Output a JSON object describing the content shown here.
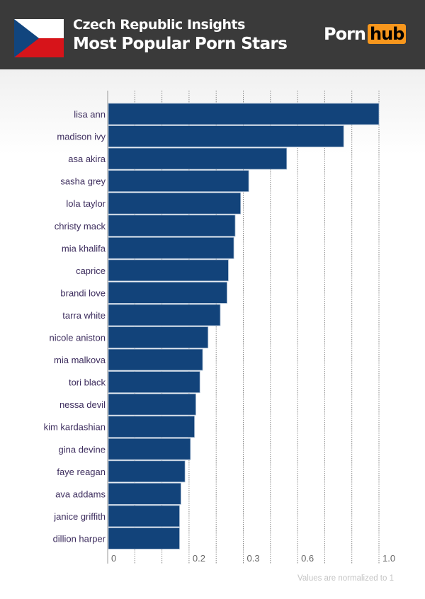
{
  "header": {
    "subtitle": "Czech Republic Insights",
    "title": "Most Popular Porn Stars",
    "logo_left": "Porn",
    "logo_right": "hub",
    "flag": "czech-flag",
    "colors": {
      "background": "#3a3a3a",
      "logo_accent": "#f7971d"
    }
  },
  "chart_data": {
    "type": "bar",
    "orientation": "horizontal",
    "categories": [
      "lisa ann",
      "madison ivy",
      "asa akira",
      "sasha grey",
      "lola taylor",
      "christy mack",
      "mia khalifa",
      "caprice",
      "brandi love",
      "tarra white",
      "nicole aniston",
      "mia malkova",
      "tori black",
      "nessa devil",
      "kim kardashian",
      "gina devine",
      "faye reagan",
      "ava addams",
      "janice griffith",
      "dillion harper"
    ],
    "values": [
      1.0,
      0.87,
      0.66,
      0.52,
      0.49,
      0.47,
      0.465,
      0.445,
      0.44,
      0.415,
      0.37,
      0.35,
      0.34,
      0.325,
      0.32,
      0.305,
      0.285,
      0.27,
      0.265,
      0.265
    ],
    "xlim": [
      0,
      1
    ],
    "x_tick_labels": [
      "0",
      "0.2",
      "0.3",
      "0.6",
      "1.0"
    ],
    "grid": true,
    "bar_color": "#12437a",
    "label_color": "#3d2d5e",
    "note": "Values are normalized to 1"
  }
}
